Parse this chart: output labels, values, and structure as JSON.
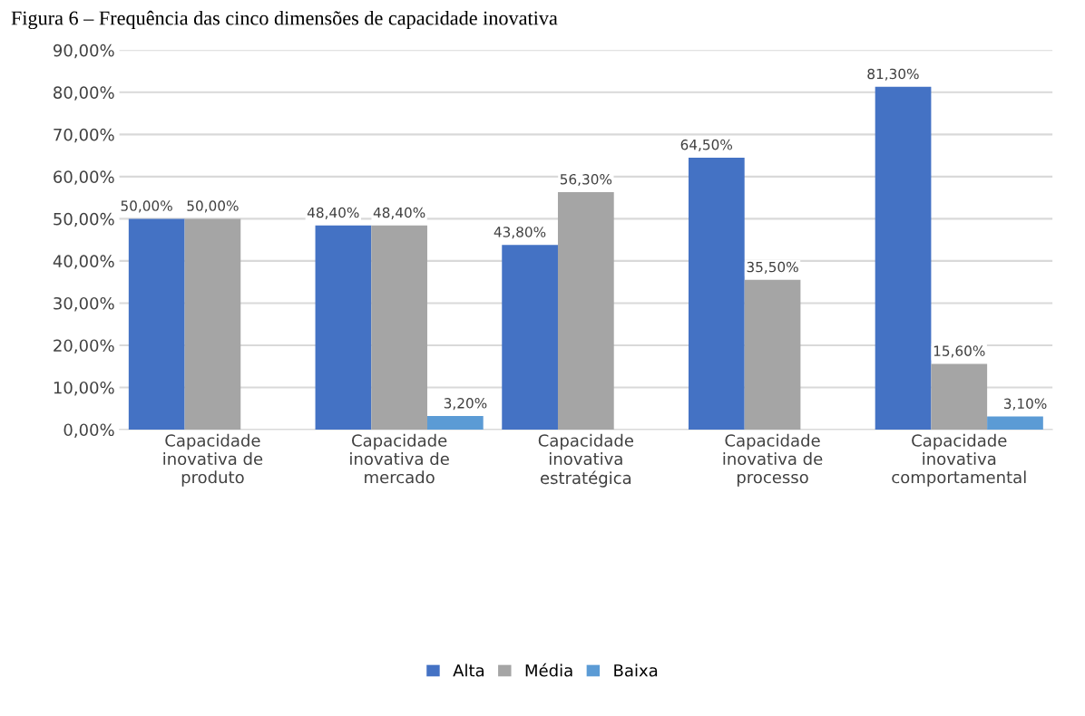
{
  "chart_data": {
    "type": "bar",
    "title": "Figura 6 – Frequência das cinco dimensões de capacidade inovativa",
    "categories": [
      "Capacidade\ninovativa de\nproduto",
      "Capacidade\ninovativa de\nmercado",
      "Capacidade\ninovativa\nestratégica",
      "Capacidade\ninovativa de\nprocesso",
      "Capacidade\ninovativa\ncomportamental"
    ],
    "series": [
      {
        "name": "Alta",
        "color": "#4472c4",
        "values": [
          50.0,
          48.4,
          43.8,
          64.5,
          81.3
        ],
        "value_labels": [
          "50,00%",
          "48,40%",
          "43,80%",
          "64,50%",
          "81,30%"
        ]
      },
      {
        "name": "Média",
        "color": "#a5a5a5",
        "values": [
          50.0,
          48.4,
          56.3,
          35.5,
          15.6
        ],
        "value_labels": [
          "50,00%",
          "48,40%",
          "56,30%",
          "35,50%",
          "15,60%"
        ]
      },
      {
        "name": "Baixa",
        "color": "#5b9bd5",
        "values": [
          null,
          3.2,
          null,
          null,
          3.1
        ],
        "value_labels": [
          null,
          "3,20%",
          null,
          null,
          "3,10%"
        ]
      }
    ],
    "ylim": [
      0,
      90
    ],
    "yticks": [
      {
        "value": 0,
        "label": "0,00%"
      },
      {
        "value": 10,
        "label": "10,00%"
      },
      {
        "value": 20,
        "label": "20,00%"
      },
      {
        "value": 30,
        "label": "30,00%"
      },
      {
        "value": 40,
        "label": "40,00%"
      },
      {
        "value": 50,
        "label": "50,00%"
      },
      {
        "value": 60,
        "label": "60,00%"
      },
      {
        "value": 70,
        "label": "70,00%"
      },
      {
        "value": 80,
        "label": "80,00%"
      },
      {
        "value": 90,
        "label": "90,00%"
      }
    ],
    "grid": "y",
    "legend": "bottom"
  }
}
